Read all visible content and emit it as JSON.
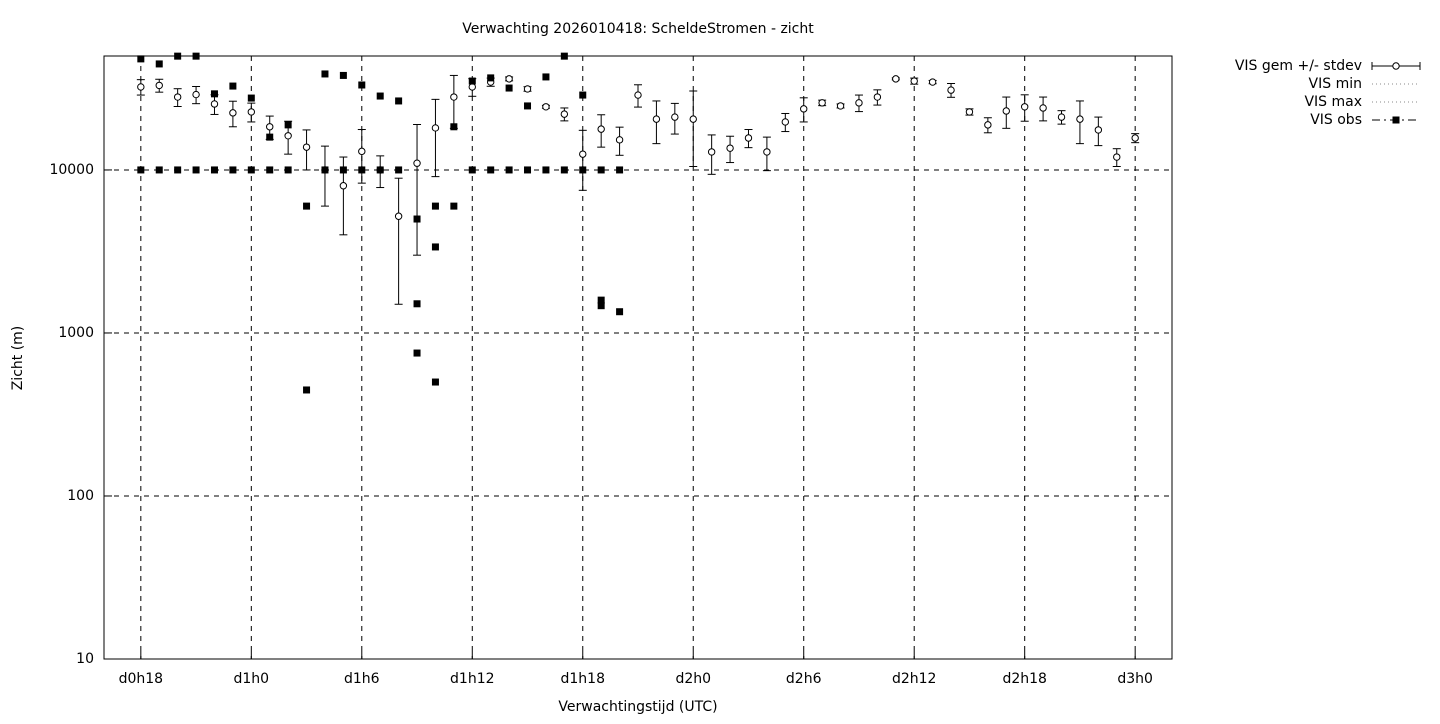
{
  "chart_data": {
    "type": "line",
    "title": "Verwachting 2026010418: ScheldeStromen - zicht",
    "x_label": "Verwachtingstijd (UTC)",
    "y_label": "Zicht (m)",
    "log_y": true,
    "grid": true,
    "legend": "outside-right",
    "xlim": [
      16,
      74
    ],
    "ylim": [
      10,
      50000
    ],
    "xticks": [
      {
        "value": 18,
        "label": "d0h18"
      },
      {
        "value": 24,
        "label": "d1h0"
      },
      {
        "value": 30,
        "label": "d1h6"
      },
      {
        "value": 36,
        "label": "d1h12"
      },
      {
        "value": 42,
        "label": "d1h18"
      },
      {
        "value": 48,
        "label": "d2h0"
      },
      {
        "value": 54,
        "label": "d2h6"
      },
      {
        "value": 60,
        "label": "d2h12"
      },
      {
        "value": 66,
        "label": "d2h18"
      },
      {
        "value": 72,
        "label": "d3h0"
      }
    ],
    "yticks": [
      10,
      100,
      1000,
      10000
    ],
    "x": [
      18,
      19,
      20,
      21,
      22,
      23,
      24,
      25,
      26,
      27,
      28,
      29,
      30,
      31,
      32,
      33,
      34,
      35,
      36,
      37,
      38,
      39,
      40,
      41,
      42,
      43,
      44,
      45,
      46,
      47,
      48,
      49,
      50,
      51,
      52,
      53,
      54,
      55,
      56,
      57,
      58,
      59,
      60,
      61,
      62,
      63,
      64,
      65,
      66,
      67,
      68,
      69,
      70,
      71,
      72
    ],
    "series": [
      {
        "name": "VIS gem +/- stdev",
        "style": "errorbar",
        "color": "#000000",
        "values": [
          32300,
          33000,
          28000,
          29000,
          25400,
          22400,
          22700,
          18400,
          16200,
          13800,
          10000,
          8000,
          13000,
          10000,
          5200,
          11000,
          18100,
          28000,
          32300,
          34600,
          36200,
          31400,
          24400,
          22000,
          12500,
          17800,
          15300,
          28800,
          20500,
          21100,
          20500,
          12900,
          13600,
          15700,
          12900,
          19700,
          23700,
          25800,
          24700,
          25800,
          28000,
          36200,
          35100,
          34600,
          30900,
          22700,
          18900,
          23000,
          24400,
          24000,
          21100,
          20500,
          17600,
          12000,
          15700
        ],
        "stdev": [
          3500,
          3000,
          3500,
          3500,
          3500,
          4000,
          3000,
          3000,
          3700,
          3800,
          4000,
          4000,
          4700,
          2200,
          3700,
          8000,
          9000,
          10000,
          4000,
          2000,
          1000,
          1000,
          500,
          2000,
          5000,
          4000,
          3000,
          4500,
          6000,
          4500,
          10000,
          3500,
          2500,
          2000,
          3000,
          2500,
          4000,
          1000,
          700,
          3000,
          3000,
          500,
          1500,
          800,
          3000,
          1000,
          2000,
          5000,
          4500,
          4000,
          2000,
          6000,
          3500,
          1500,
          1000
        ]
      },
      {
        "name": "VIS min",
        "style": "dotted",
        "color": "#a0a0a0",
        "values": [
          26100,
          26100,
          22700,
          22100,
          20300,
          15300,
          18600,
          15300,
          13600,
          10300,
          5700,
          1840,
          6500,
          7800,
          8700,
          5700,
          8700,
          17600,
          28400,
          31800,
          30100,
          27600,
          22700,
          20800,
          3470,
          13300,
          8700,
          24000,
          15300,
          15300,
          6900,
          5700,
          13300,
          11500,
          7300,
          15300,
          20300,
          24000,
          22700,
          20300,
          13600,
          30900,
          30900,
          30900,
          26900,
          21400,
          15300,
          14000,
          18100,
          17600,
          17600,
          14900,
          13600,
          10300,
          13600
        ]
      },
      {
        "name": "VIS max",
        "style": "dotted",
        "color": "#a0a0a0",
        "values": [
          41000,
          39900,
          36700,
          36700,
          33700,
          29300,
          30100,
          23300,
          23300,
          18100,
          17100,
          19700,
          27600,
          17600,
          18100,
          37700,
          46000,
          48600,
          46000,
          43400,
          41000,
          41000,
          35600,
          30900,
          22700,
          25400,
          24000,
          35600,
          28900,
          26900,
          27600,
          17100,
          17600,
          20300,
          18100,
          24000,
          30900,
          31800,
          29300,
          30100,
          32700,
          37700,
          38800,
          38800,
          35600,
          27600,
          25400,
          29300,
          31800,
          30900,
          26900,
          34700,
          25400,
          16200,
          18100
        ]
      },
      {
        "name": "VIS obs",
        "style": "points",
        "color": "#000000",
        "x": [
          18,
          18,
          19,
          19,
          20,
          20,
          21,
          21,
          22,
          22,
          23,
          23,
          24,
          24,
          25,
          25,
          26,
          26,
          27,
          27,
          28,
          28,
          29,
          29,
          30,
          30,
          31,
          31,
          32,
          32,
          33,
          33,
          33,
          34,
          34,
          34,
          35,
          35,
          36,
          36,
          37,
          37,
          38,
          38,
          39,
          39,
          40,
          40,
          41,
          41,
          42,
          42,
          43,
          43,
          43,
          44,
          44
        ],
        "values": [
          48000,
          10000,
          44700,
          10000,
          49900,
          10000,
          49900,
          10000,
          29300,
          10000,
          32700,
          10000,
          27600,
          10000,
          15900,
          10000,
          18900,
          10000,
          6000,
          447,
          38800,
          10000,
          38000,
          10000,
          33200,
          10000,
          28400,
          10000,
          26500,
          10000,
          5000,
          1510,
          753,
          6000,
          3370,
          500,
          18400,
          6000,
          35100,
          10000,
          36700,
          10000,
          31800,
          10000,
          24700,
          10000,
          37200,
          10000,
          49900,
          10000,
          28800,
          10000,
          1590,
          1470,
          10000,
          1350,
          10000
        ]
      }
    ]
  }
}
